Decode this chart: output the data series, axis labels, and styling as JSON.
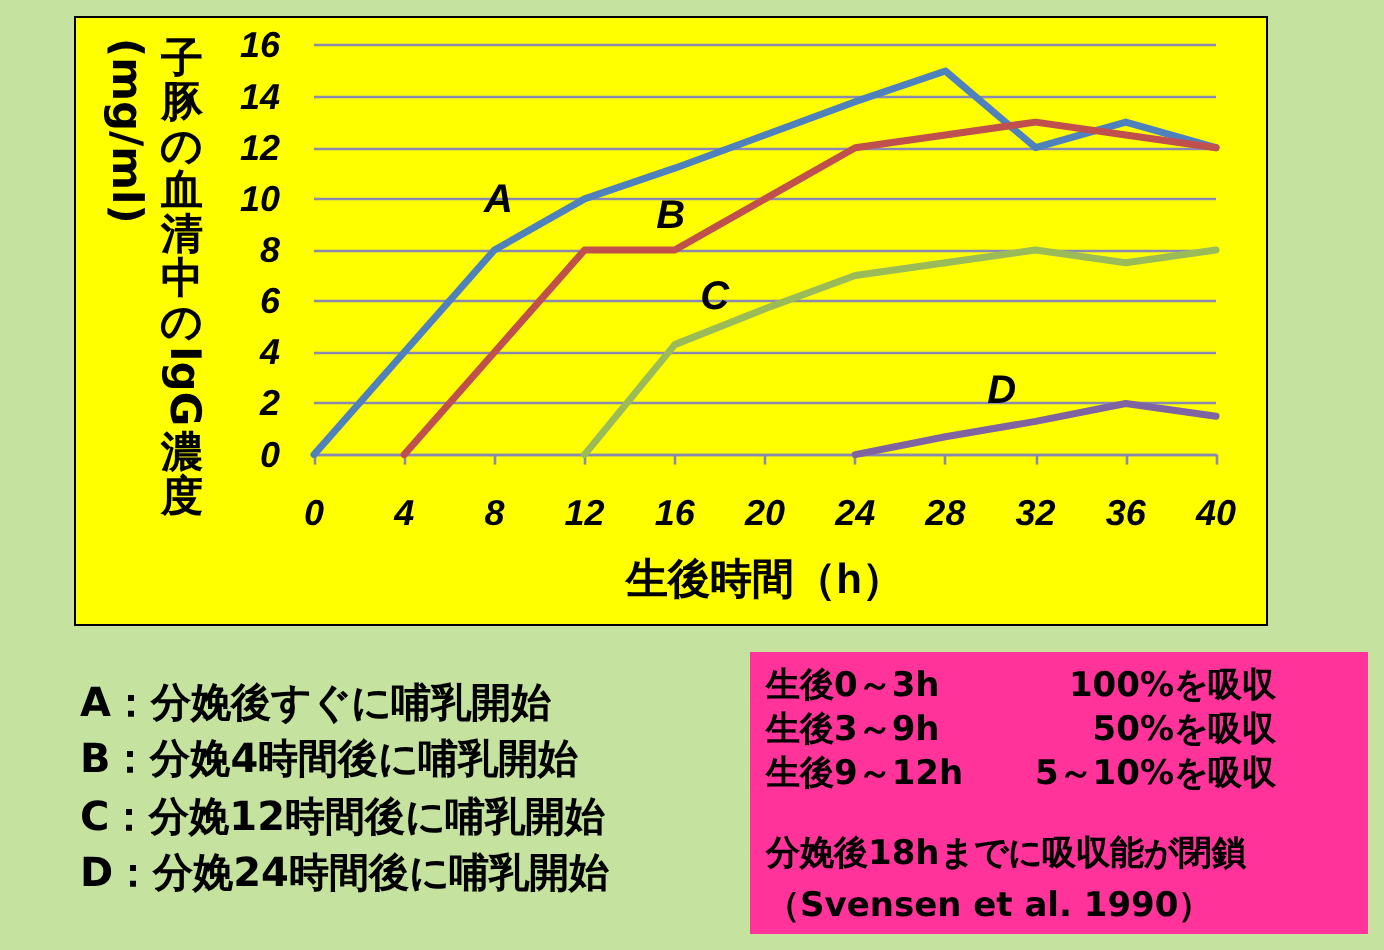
{
  "chart_data": {
    "type": "line",
    "xlabel": "生後時間（h）",
    "ylabel": "子豚の血清中のIgG濃度\n(mg/ml)",
    "x": [
      0,
      4,
      8,
      12,
      16,
      20,
      24,
      28,
      32,
      36,
      40
    ],
    "series": [
      {
        "name": "A",
        "color": "#4f81bd",
        "values": [
          0,
          4,
          8,
          10,
          11.2,
          12.5,
          13.8,
          15,
          12,
          13,
          12
        ]
      },
      {
        "name": "B",
        "color": "#c0504d",
        "values": [
          null,
          0,
          4,
          8,
          8,
          10,
          12,
          12.5,
          13,
          12.5,
          12
        ]
      },
      {
        "name": "C",
        "color": "#9bbb59",
        "values": [
          null,
          null,
          null,
          0,
          4.3,
          5.7,
          7,
          7.5,
          8,
          7.5,
          8
        ]
      },
      {
        "name": "D",
        "color": "#8064a2",
        "values": [
          null,
          null,
          null,
          null,
          null,
          null,
          0,
          0.7,
          1.3,
          2,
          1.5
        ]
      }
    ],
    "xlim": [
      0,
      40
    ],
    "xticks": [
      0,
      4,
      8,
      12,
      16,
      20,
      24,
      28,
      32,
      36,
      40
    ],
    "ylim": [
      0,
      16
    ],
    "yticks": [
      0,
      2,
      4,
      6,
      8,
      10,
      12,
      14,
      16
    ],
    "grid": "y",
    "marker": "none",
    "line_style": "solid",
    "annotations": [
      "A：分娩後すぐに哺乳開始",
      "B：分娩4時間後に哺乳開始",
      "C：分娩12時間後に哺乳開始",
      "D：分娩24時間後に哺乳開始",
      "生後0～3h",
      "100%を吸収",
      "生後3～9h",
      "50%を吸収",
      "生後9～12h",
      "5～10%を吸収",
      "分娩後18hまでに吸収能が閉鎖",
      "（Svensen et al. 1990）"
    ]
  }
}
